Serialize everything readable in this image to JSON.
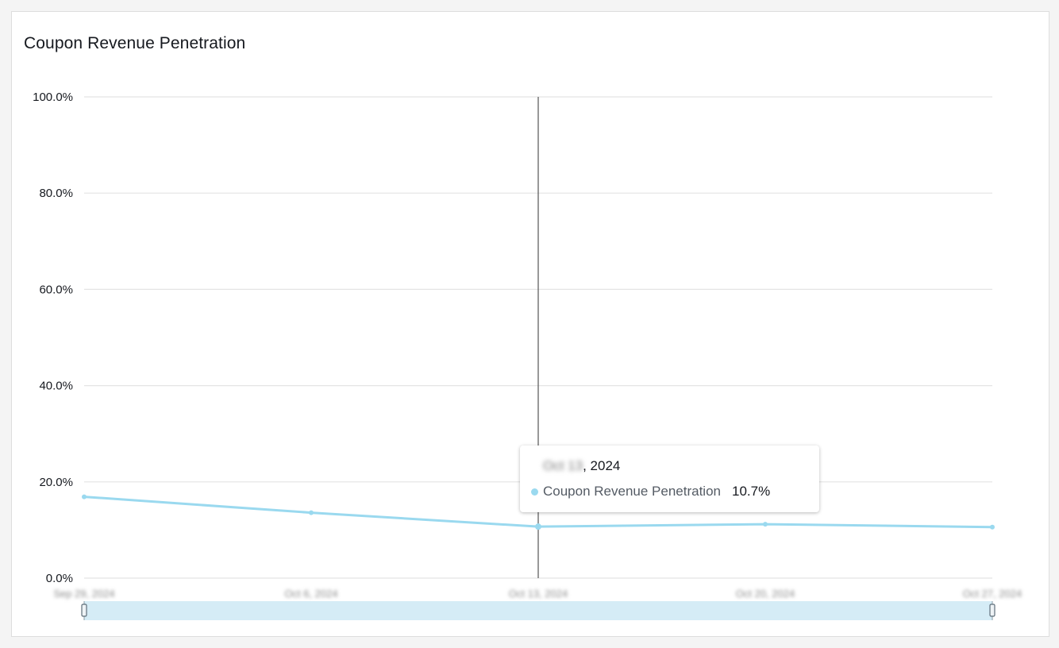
{
  "card": {
    "title": "Coupon Revenue Penetration"
  },
  "colors": {
    "series": "#9ad9ef",
    "grid": "#e4e4e4",
    "crosshair": "#555555",
    "brush": "#d5ecf6"
  },
  "chart_data": {
    "type": "line",
    "title": "Coupon Revenue Penetration",
    "xlabel": "",
    "ylabel": "",
    "ylim": [
      0,
      100
    ],
    "y_ticks": [
      "0.0%",
      "20.0%",
      "40.0%",
      "60.0%",
      "80.0%",
      "100.0%"
    ],
    "x": [
      "Sep 29, 2024",
      "Oct 6, 2024",
      "Oct 13, 2024",
      "Oct 20, 2024",
      "Oct 27, 2024"
    ],
    "series": [
      {
        "name": "Coupon Revenue Penetration",
        "values": [
          16.9,
          13.6,
          10.7,
          11.2,
          10.6
        ]
      }
    ],
    "grid": true,
    "highlighted_index": 2
  },
  "tooltip": {
    "date_obscured": "Oct 13",
    "date_suffix": ", 2024",
    "series_label": "Coupon Revenue Penetration",
    "value": "10.7%"
  }
}
